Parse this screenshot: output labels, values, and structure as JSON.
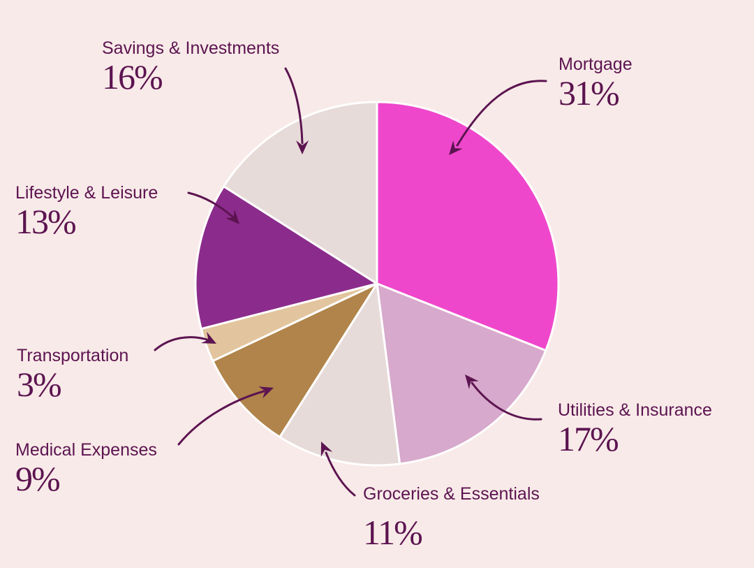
{
  "chart_data": {
    "type": "pie",
    "start_angle_deg": 0,
    "direction": "clockwise",
    "slices": [
      {
        "label": "Mortgage",
        "value": 31,
        "value_label": "31%",
        "color": "#ef47cc"
      },
      {
        "label": "Utilities & Insurance",
        "value": 17,
        "value_label": "17%",
        "color": "#d7a9cc"
      },
      {
        "label": "Groceries & Essentials",
        "value": 11,
        "value_label": "11%",
        "color": "#e7dbd9"
      },
      {
        "label": "Medical Expenses",
        "value": 9,
        "value_label": "9%",
        "color": "#b0844b"
      },
      {
        "label": "Transportation",
        "value": 3,
        "value_label": "3%",
        "color": "#e2c59e"
      },
      {
        "label": "Lifestyle & Leisure",
        "value": 13,
        "value_label": "13%",
        "color": "#8b2c8c"
      },
      {
        "label": "Savings & Investments",
        "value": 16,
        "value_label": "16%",
        "color": "#e7dbd9"
      }
    ]
  },
  "colors": {
    "background": "#f8eae8",
    "text": "#5c1450",
    "arrow": "#5c1450",
    "slice_border": "#ffffff"
  }
}
